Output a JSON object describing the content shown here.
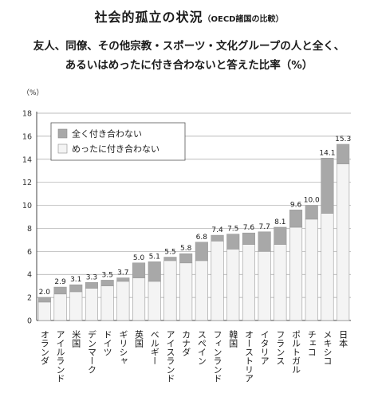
{
  "header": {
    "title": "社会的孤立の状況",
    "title_note": "（OECD諸国の比較）",
    "subtitle_line1": "友人、同僚、その他宗教・スポーツ・文化グループの人と全く、",
    "subtitle_line2": "あるいはめったに付き合わないと答えた比率（%）"
  },
  "chart_data": {
    "type": "bar",
    "stacked": true,
    "unit": "（%）",
    "ylim": [
      0,
      18
    ],
    "yticks": [
      0,
      2,
      4,
      6,
      8,
      10,
      12,
      14,
      16,
      18
    ],
    "grid": true,
    "legend_position": "top-left",
    "categories": [
      "オランダ",
      "アイルランド",
      "米国",
      "デンマーク",
      "ドイツ",
      "ギリシャ",
      "英国",
      "ベルギー",
      "アイスランド",
      "カナダ",
      "スペイン",
      "フィンランド",
      "韓国",
      "オーストリア",
      "イタリア",
      "フランス",
      "ポルトガル",
      "チェコ",
      "メキシコ",
      "日本"
    ],
    "series": [
      {
        "name": "めったに付き合わない",
        "color": "#f4f4f4",
        "values": [
          1.6,
          2.3,
          2.5,
          2.8,
          3.0,
          3.4,
          3.7,
          3.4,
          5.2,
          5.0,
          5.2,
          6.9,
          6.2,
          6.6,
          6.0,
          6.6,
          8.1,
          8.8,
          9.3,
          13.6
        ]
      },
      {
        "name": "全く付き合わない",
        "color": "#a8a8a8",
        "values": [
          0.4,
          0.6,
          0.6,
          0.5,
          0.5,
          0.3,
          1.3,
          1.7,
          0.3,
          0.8,
          1.6,
          0.5,
          1.3,
          1.0,
          1.7,
          1.5,
          1.5,
          1.2,
          4.8,
          1.7
        ]
      }
    ],
    "totals": [
      "2.0",
      "2.9",
      "3.1",
      "3.3",
      "3.5",
      "3.7",
      "5.0",
      "5.1",
      "5.5",
      "5.8",
      "6.8",
      "7.4",
      "7.5",
      "7.6",
      "7.7",
      "8.1",
      "9.6",
      "10.0",
      "14.1",
      "15.3"
    ]
  }
}
